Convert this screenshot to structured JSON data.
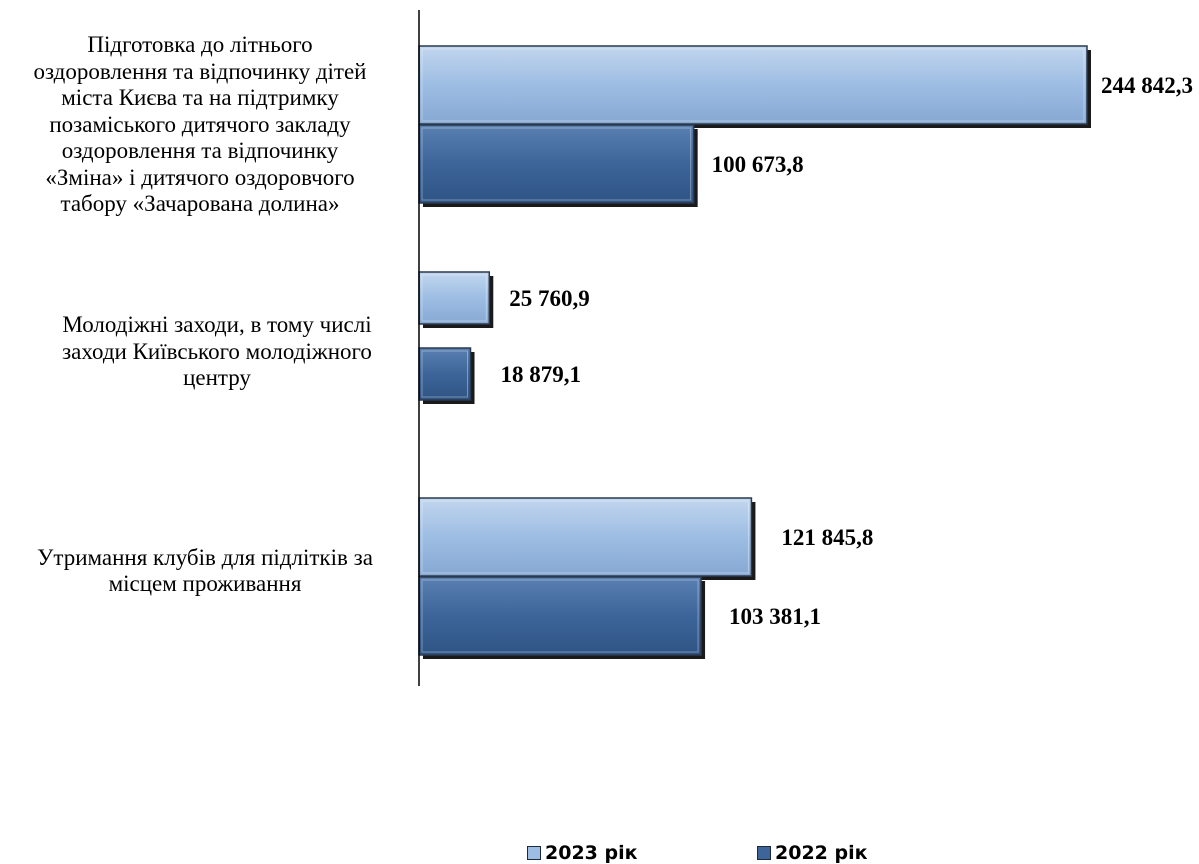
{
  "chart_data": {
    "type": "bar",
    "orientation": "horizontal",
    "categories": [
      "Підготовка до літнього оздоровлення та відпочинку дітей міста Києва та на підтримку позаміського дитячого закладу оздоровлення та відпочинку «Зміна» і дитячого оздоровчого табору «Зачарована долина»",
      "Молодіжні заходи, в тому числі заходи Київського молодіжного центру",
      "Утримання клубів для підлітків за місцем проживання"
    ],
    "category_lines": [
      [
        "Підготовка до літнього",
        "оздоровлення та відпочинку дітей",
        "міста Києва та на підтримку",
        "позаміського дитячого закладу",
        "оздоровлення та відпочинку",
        "«Зміна» і дитячого оздоровчого",
        "табору «Зачарована долина»"
      ],
      [
        "Молодіжні заходи, в тому числі",
        "заходи Київського молодіжного",
        "центру"
      ],
      [
        "Утримання клубів для підлітків за",
        "місцем проживання"
      ]
    ],
    "series": [
      {
        "name": "2023 рік",
        "color": "#9dbde3",
        "values": [
          244842.3,
          25760.9,
          121845.8
        ],
        "labels": [
          "244 842,3",
          "25 760,9",
          "121 845,8"
        ]
      },
      {
        "name": "2022 рік",
        "color": "#3d6599",
        "values": [
          100673.8,
          18879.1,
          103381.1
        ],
        "labels": [
          "100 673,8",
          "18 879,1",
          "103 381,1"
        ]
      }
    ],
    "xlim": [
      0,
      255000
    ],
    "legend_position": "bottom",
    "grid": false
  },
  "legend": {
    "item_2023": "2023 рік",
    "item_2022": "2022 рік"
  }
}
